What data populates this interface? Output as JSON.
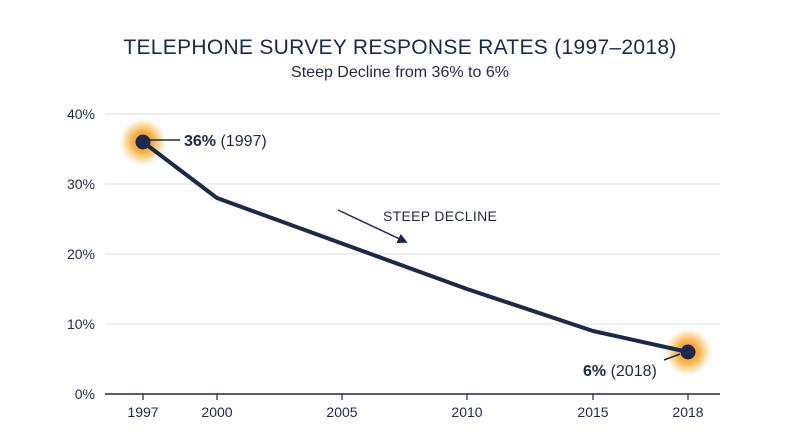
{
  "chart_data": {
    "type": "line",
    "title": "TELEPHONE SURVEY RESPONSE RATES (1997–2018)",
    "subtitle": "Steep Decline from 36% to 6%",
    "x": [
      1997,
      2000,
      2005,
      2010,
      2015,
      2018
    ],
    "series": [
      {
        "values": [
          36,
          28,
          21.5,
          15,
          9,
          6
        ]
      }
    ],
    "xticks": [
      "1997",
      "2000",
      "2005",
      "2010",
      "2015",
      "2018"
    ],
    "yticks": [
      "0%",
      "10%",
      "20%",
      "30%",
      "40%"
    ],
    "ylim": [
      0,
      40
    ],
    "xlim": [
      1997,
      2018
    ],
    "grid": true,
    "annotations": {
      "start": {
        "value": "36%",
        "label": " (1997)"
      },
      "end": {
        "value": "6%",
        "label": " (2018)"
      },
      "trend": "STEEP DECLINE"
    },
    "colors": {
      "line": "#1b2a4a",
      "grid": "#dcdfe4",
      "highlight": "#f5a623"
    }
  }
}
